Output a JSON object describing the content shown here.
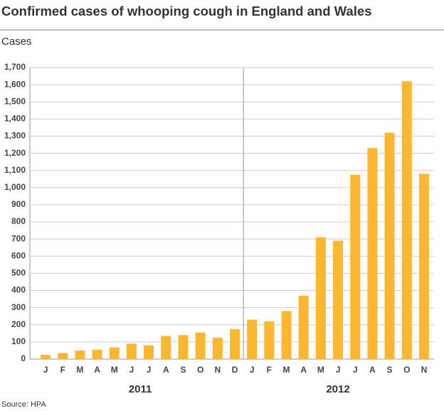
{
  "chart_data": {
    "type": "bar",
    "title": "Confirmed cases of whooping cough in England and Wales",
    "y_label": "Cases",
    "source": "Source: HPA",
    "color": "#fbb632",
    "grid": true,
    "groups": [
      {
        "label": "2011",
        "categories": [
          "J",
          "F",
          "M",
          "A",
          "M",
          "J",
          "J",
          "A",
          "S",
          "O",
          "N",
          "D"
        ],
        "values": [
          25,
          35,
          50,
          55,
          68,
          90,
          80,
          135,
          140,
          155,
          125,
          175
        ]
      },
      {
        "label": "2012",
        "categories": [
          "J",
          "F",
          "M",
          "A",
          "M",
          "J",
          "J",
          "A",
          "S",
          "O",
          "N"
        ],
        "values": [
          230,
          220,
          280,
          370,
          710,
          690,
          1075,
          1230,
          1320,
          1620,
          1080
        ]
      }
    ],
    "ylim": [
      0,
      1700
    ],
    "yticks": [
      0,
      100,
      200,
      300,
      400,
      500,
      600,
      700,
      800,
      900,
      {
        "value": 1000,
        "label": "1,000"
      },
      {
        "value": 1100,
        "label": "1,100"
      },
      {
        "value": 1200,
        "label": "1,200"
      },
      {
        "value": 1300,
        "label": "1,300"
      },
      {
        "value": 1400,
        "label": "1,400"
      },
      {
        "value": 1500,
        "label": "1,500"
      },
      {
        "value": 1600,
        "label": "1,600"
      },
      {
        "value": 1700,
        "label": "1,700"
      }
    ]
  }
}
